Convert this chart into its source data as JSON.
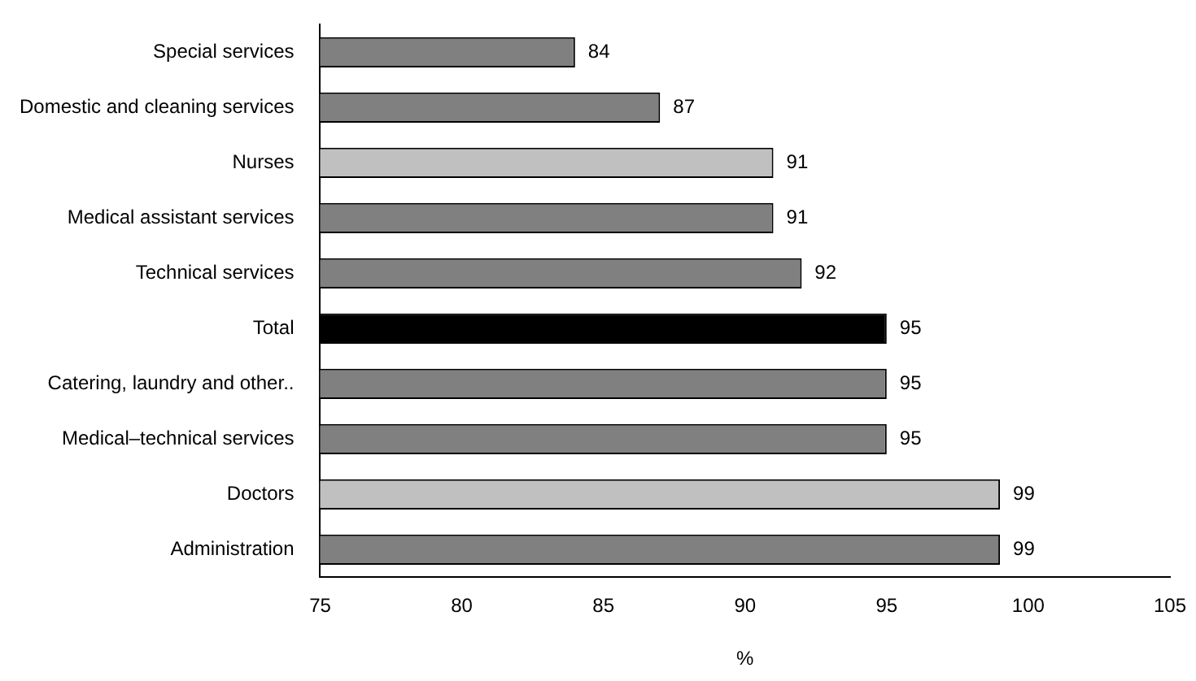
{
  "chart_data": {
    "type": "bar",
    "orientation": "horizontal",
    "xlabel": "%",
    "categories": [
      "Special services",
      "Domestic and cleaning services",
      "Nurses",
      "Medical assistant services",
      "Technical services",
      "Total",
      "Catering, laundry and other..",
      "Medical–technical services",
      "Doctors",
      "Administration"
    ],
    "values": [
      84,
      87,
      91,
      91,
      92,
      95,
      95,
      95,
      99,
      99
    ],
    "colors": [
      "#808080",
      "#808080",
      "#c0c0c0",
      "#808080",
      "#808080",
      "#000000",
      "#808080",
      "#808080",
      "#c0c0c0",
      "#808080"
    ],
    "xlim": [
      75,
      105
    ],
    "xticks": [
      75,
      80,
      85,
      90,
      95,
      100,
      105
    ],
    "data_labels": true,
    "legend": false
  }
}
